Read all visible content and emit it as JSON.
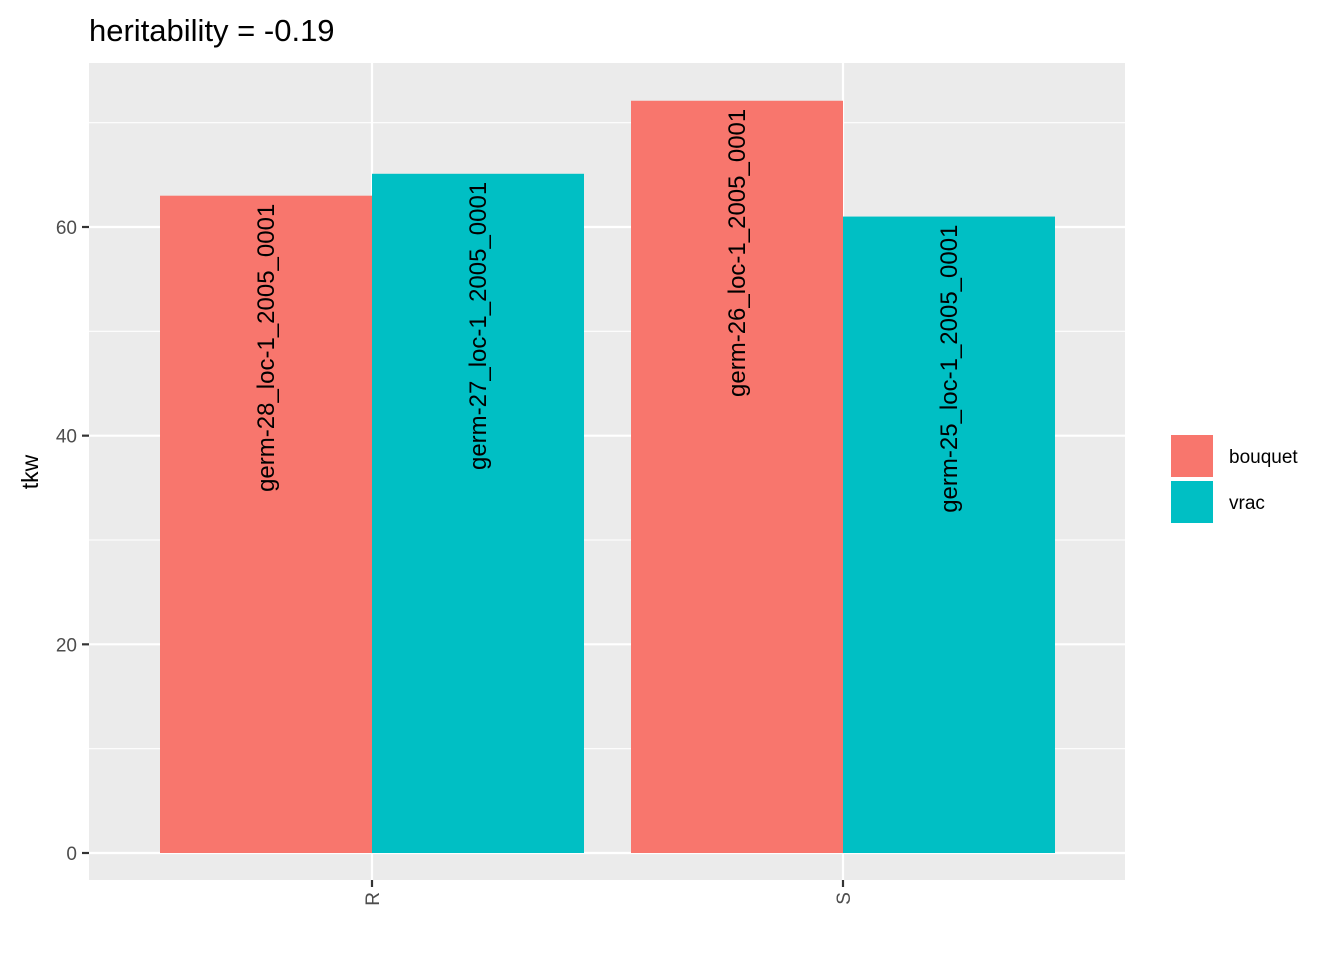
{
  "chart_data": {
    "type": "bar",
    "title": "heritability =  -0.19",
    "xlabel": "",
    "ylabel": "tkw",
    "categories": [
      "R",
      "S"
    ],
    "ylim": [
      -2.6,
      75.6
    ],
    "yticks": [
      0,
      20,
      40,
      60
    ],
    "grid": true,
    "legend_position": "right",
    "series": [
      {
        "name": "bouquet",
        "color": "#F8766D",
        "values": [
          63,
          72.1
        ],
        "labels": [
          "germ-28_loc-1_2005_0001",
          "germ-26_loc-1_2005_0001"
        ]
      },
      {
        "name": "vrac",
        "color": "#00BFC4",
        "values": [
          65.1,
          61
        ],
        "labels": [
          "germ-27_loc-1_2005_0001",
          "germ-25_loc-1_2005_0001"
        ]
      }
    ]
  }
}
